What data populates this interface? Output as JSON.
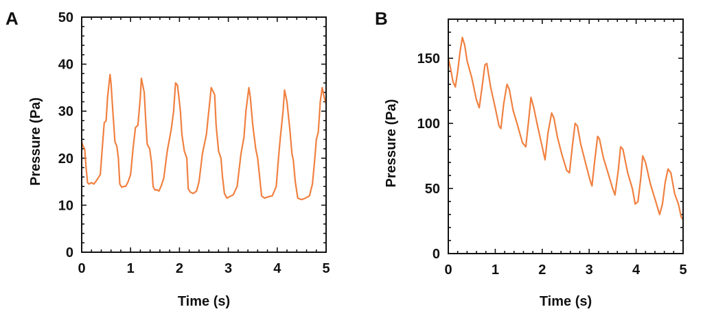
{
  "figure": {
    "series_color": "#F08040"
  },
  "chart_data": [
    {
      "panel": "A",
      "type": "line",
      "title": "",
      "xlabel": "Time (s)",
      "ylabel": "Pressure (Pa)",
      "xlim": [
        0,
        5
      ],
      "ylim": [
        0,
        50
      ],
      "xticks": [
        0,
        1,
        2,
        3,
        4,
        5
      ],
      "xtick_labels": [
        "0",
        "1",
        "2",
        "3",
        "4",
        "5"
      ],
      "yticks": [
        0,
        10,
        20,
        30,
        40,
        50
      ],
      "ytick_labels": [
        "0",
        "10",
        "20",
        "30",
        "40",
        "50"
      ],
      "x_minor_per_major": 5,
      "y_minor_per_major": 5,
      "grid": false,
      "legend": "none",
      "series": [
        {
          "name": "Pressure",
          "x": [
            0.0,
            0.03,
            0.06,
            0.09,
            0.12,
            0.15,
            0.2,
            0.25,
            0.3,
            0.38,
            0.42,
            0.46,
            0.5,
            0.53,
            0.58,
            0.6,
            0.63,
            0.68,
            0.72,
            0.75,
            0.78,
            0.82,
            0.86,
            0.9,
            0.95,
            1.0,
            1.05,
            1.1,
            1.15,
            1.2,
            1.22,
            1.28,
            1.31,
            1.34,
            1.39,
            1.43,
            1.46,
            1.5,
            1.54,
            1.58,
            1.63,
            1.68,
            1.75,
            1.83,
            1.88,
            1.92,
            1.96,
            2.02,
            2.05,
            2.1,
            2.15,
            2.18,
            2.22,
            2.28,
            2.35,
            2.4,
            2.47,
            2.55,
            2.6,
            2.65,
            2.72,
            2.75,
            2.8,
            2.85,
            2.88,
            2.92,
            2.97,
            3.02,
            3.1,
            3.18,
            3.26,
            3.32,
            3.36,
            3.42,
            3.45,
            3.5,
            3.56,
            3.6,
            3.64,
            3.68,
            3.74,
            3.82,
            3.9,
            3.98,
            4.03,
            4.06,
            4.12,
            4.15,
            4.2,
            4.26,
            4.3,
            4.33,
            4.37,
            4.42,
            4.5,
            4.58,
            4.66,
            4.72,
            4.77,
            4.8,
            4.84,
            4.88,
            4.92,
            4.96,
            5.0
          ],
          "y": [
            23.5,
            22.5,
            22.0,
            18.0,
            14.8,
            14.5,
            14.8,
            14.5,
            15.2,
            16.5,
            22.0,
            27.5,
            28.0,
            33.0,
            37.8,
            36.0,
            31.0,
            23.5,
            22.5,
            20.0,
            14.5,
            13.8,
            14.0,
            14.0,
            15.0,
            16.5,
            22.0,
            26.5,
            27.0,
            33.0,
            37.0,
            34.0,
            28.0,
            23.0,
            22.0,
            19.0,
            14.0,
            13.2,
            13.3,
            13.0,
            14.2,
            15.8,
            21.5,
            26.0,
            30.0,
            36.0,
            35.5,
            30.0,
            25.0,
            21.5,
            20.0,
            13.5,
            12.8,
            12.5,
            13.0,
            15.0,
            21.0,
            25.0,
            30.0,
            35.0,
            33.5,
            27.0,
            21.5,
            20.0,
            16.0,
            12.5,
            11.5,
            11.8,
            12.2,
            14.0,
            21.0,
            24.5,
            30.0,
            35.0,
            33.0,
            27.0,
            22.0,
            20.0,
            16.0,
            12.0,
            11.5,
            11.8,
            12.0,
            14.0,
            20.5,
            24.0,
            30.0,
            34.5,
            32.0,
            26.0,
            21.0,
            19.5,
            15.0,
            11.5,
            11.2,
            11.5,
            12.0,
            14.5,
            20.0,
            24.0,
            25.5,
            32.0,
            35.0,
            33.0,
            31.5
          ]
        }
      ]
    },
    {
      "panel": "B",
      "type": "line",
      "title": "",
      "xlabel": "Time (s)",
      "ylabel": "Pressure (Pa)",
      "xlim": [
        0,
        5
      ],
      "ylim": [
        0,
        180
      ],
      "xticks": [
        0,
        1,
        2,
        3,
        4,
        5
      ],
      "xtick_labels": [
        "0",
        "1",
        "2",
        "3",
        "4",
        "5"
      ],
      "yticks": [
        0,
        50,
        100,
        150
      ],
      "ytick_labels": [
        "0",
        "50",
        "100",
        "150"
      ],
      "x_minor_per_major": 5,
      "y_minor_per_major": 5,
      "grid": false,
      "legend": "none",
      "series": [
        {
          "name": "Pressure",
          "x": [
            0.0,
            0.05,
            0.1,
            0.15,
            0.2,
            0.25,
            0.3,
            0.35,
            0.4,
            0.5,
            0.6,
            0.66,
            0.72,
            0.78,
            0.82,
            0.9,
            1.0,
            1.08,
            1.12,
            1.18,
            1.25,
            1.3,
            1.38,
            1.48,
            1.58,
            1.65,
            1.72,
            1.76,
            1.82,
            1.9,
            2.0,
            2.06,
            2.12,
            2.2,
            2.25,
            2.32,
            2.42,
            2.52,
            2.58,
            2.64,
            2.7,
            2.75,
            2.82,
            2.92,
            3.02,
            3.06,
            3.12,
            3.18,
            3.22,
            3.3,
            3.4,
            3.5,
            3.55,
            3.62,
            3.67,
            3.72,
            3.82,
            3.92,
            3.98,
            4.04,
            4.1,
            4.14,
            4.2,
            4.3,
            4.4,
            4.5,
            4.56,
            4.62,
            4.68,
            4.74,
            4.82,
            4.9,
            4.96,
            5.0
          ],
          "y": [
            150,
            142,
            132,
            128,
            140,
            155,
            166,
            160,
            148,
            135,
            118,
            112,
            128,
            145,
            146,
            128,
            112,
            98,
            96,
            115,
            130,
            126,
            110,
            98,
            85,
            82,
            105,
            120,
            112,
            98,
            82,
            72,
            92,
            108,
            104,
            90,
            76,
            64,
            62,
            82,
            100,
            98,
            84,
            70,
            56,
            52,
            72,
            90,
            88,
            74,
            62,
            50,
            45,
            64,
            82,
            80,
            62,
            50,
            38,
            40,
            58,
            75,
            70,
            54,
            42,
            30,
            38,
            55,
            65,
            62,
            46,
            38,
            28,
            26
          ]
        }
      ]
    }
  ]
}
